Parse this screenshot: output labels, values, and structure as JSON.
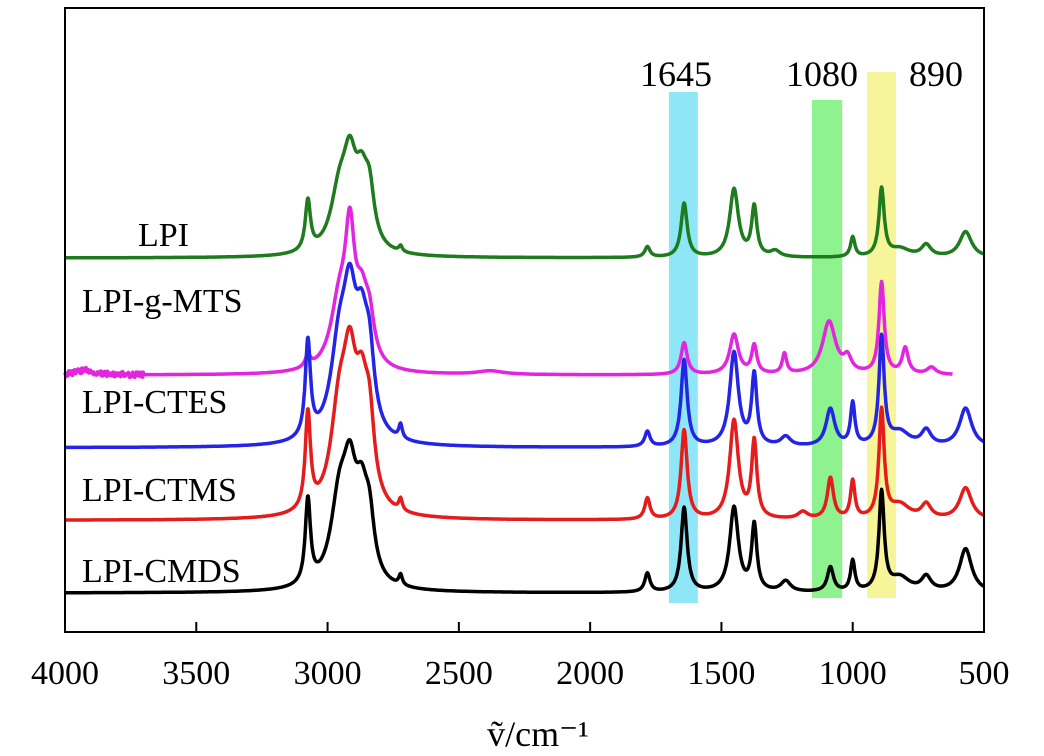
{
  "chart_data": {
    "type": "line",
    "title": "",
    "xlabel": "ṽ/cm⁻¹",
    "ylabel": "",
    "xlim": [
      4000,
      500
    ],
    "xticks": [
      4000,
      3500,
      3000,
      2500,
      2000,
      1500,
      1000,
      500
    ],
    "xtick_labels": [
      "4000",
      "3500",
      "3000",
      "2500",
      "2000",
      "1500",
      "1000",
      "500"
    ],
    "grid": false,
    "legend": "inline labels left of each trace",
    "highlight_bands": [
      {
        "label": "1645",
        "from": 1700,
        "to": 1590,
        "color": "#8ee6f7"
      },
      {
        "label": "1080",
        "from": 1155,
        "to": 1040,
        "color": "#8ef28e"
      },
      {
        "label": "890",
        "from": 945,
        "to": 835,
        "color": "#f7f59a"
      }
    ],
    "series": [
      {
        "name": "LPI",
        "color": "#1e7b1e",
        "baseline": 1.0,
        "xmin": 500,
        "xmax": 4000,
        "peaks": [
          {
            "x": 3075,
            "h": 0.43,
            "w": 12
          },
          {
            "x": 2955,
            "h": 0.48,
            "w": 40
          },
          {
            "x": 2915,
            "h": 0.62,
            "w": 30
          },
          {
            "x": 2870,
            "h": 0.5,
            "w": 30
          },
          {
            "x": 2840,
            "h": 0.38,
            "w": 22
          },
          {
            "x": 2722,
            "h": 0.05,
            "w": 8
          },
          {
            "x": 1782,
            "h": 0.09,
            "w": 12
          },
          {
            "x": 1642,
            "h": 0.46,
            "w": 14
          },
          {
            "x": 1452,
            "h": 0.58,
            "w": 20
          },
          {
            "x": 1375,
            "h": 0.42,
            "w": 12
          },
          {
            "x": 1295,
            "h": 0.05,
            "w": 22
          },
          {
            "x": 1000,
            "h": 0.17,
            "w": 10
          },
          {
            "x": 890,
            "h": 0.58,
            "w": 12
          },
          {
            "x": 820,
            "h": 0.07,
            "w": 45
          },
          {
            "x": 720,
            "h": 0.1,
            "w": 22
          },
          {
            "x": 570,
            "h": 0.22,
            "w": 28
          }
        ]
      },
      {
        "name": "LPI-g-MTS",
        "color": "#e325e0",
        "baseline": 0.0,
        "xmin": 620,
        "xmax": 4000,
        "peaks": [
          {
            "x": 3920,
            "h": 0.04,
            "w": 40
          },
          {
            "x": 3075,
            "h": 0.1,
            "w": 12
          },
          {
            "x": 2955,
            "h": 0.55,
            "w": 40
          },
          {
            "x": 2915,
            "h": 0.98,
            "w": 22
          },
          {
            "x": 2870,
            "h": 0.5,
            "w": 30
          },
          {
            "x": 2840,
            "h": 0.3,
            "w": 22
          },
          {
            "x": 2380,
            "h": 0.03,
            "w": 60
          },
          {
            "x": 1642,
            "h": 0.27,
            "w": 14
          },
          {
            "x": 1452,
            "h": 0.34,
            "w": 20
          },
          {
            "x": 1375,
            "h": 0.24,
            "w": 12
          },
          {
            "x": 1260,
            "h": 0.17,
            "w": 10
          },
          {
            "x": 1090,
            "h": 0.45,
            "w": 30
          },
          {
            "x": 1020,
            "h": 0.12,
            "w": 18
          },
          {
            "x": 890,
            "h": 0.78,
            "w": 12
          },
          {
            "x": 800,
            "h": 0.22,
            "w": 14
          },
          {
            "x": 700,
            "h": 0.06,
            "w": 20
          }
        ]
      },
      {
        "name": "LPI-CTES",
        "color": "#2424e6",
        "baseline": -0.62,
        "xmin": 500,
        "xmax": 4000,
        "peaks": [
          {
            "x": 3075,
            "h": 0.82,
            "w": 12
          },
          {
            "x": 2955,
            "h": 0.75,
            "w": 40
          },
          {
            "x": 2915,
            "h": 0.92,
            "w": 30
          },
          {
            "x": 2870,
            "h": 0.76,
            "w": 30
          },
          {
            "x": 2840,
            "h": 0.5,
            "w": 22
          },
          {
            "x": 2722,
            "h": 0.12,
            "w": 8
          },
          {
            "x": 1782,
            "h": 0.13,
            "w": 12
          },
          {
            "x": 1642,
            "h": 0.74,
            "w": 14
          },
          {
            "x": 1452,
            "h": 0.8,
            "w": 20
          },
          {
            "x": 1375,
            "h": 0.6,
            "w": 12
          },
          {
            "x": 1255,
            "h": 0.08,
            "w": 22
          },
          {
            "x": 1085,
            "h": 0.32,
            "w": 20
          },
          {
            "x": 1000,
            "h": 0.36,
            "w": 10
          },
          {
            "x": 890,
            "h": 0.92,
            "w": 12
          },
          {
            "x": 820,
            "h": 0.12,
            "w": 45
          },
          {
            "x": 720,
            "h": 0.13,
            "w": 22
          },
          {
            "x": 570,
            "h": 0.33,
            "w": 28
          }
        ]
      },
      {
        "name": "LPI-CTMS",
        "color": "#e51c1c",
        "baseline": -1.24,
        "xmin": 500,
        "xmax": 4000,
        "peaks": [
          {
            "x": 3075,
            "h": 0.82,
            "w": 12
          },
          {
            "x": 2955,
            "h": 0.82,
            "w": 40
          },
          {
            "x": 2915,
            "h": 0.95,
            "w": 30
          },
          {
            "x": 2870,
            "h": 0.8,
            "w": 30
          },
          {
            "x": 2840,
            "h": 0.55,
            "w": 22
          },
          {
            "x": 2722,
            "h": 0.1,
            "w": 8
          },
          {
            "x": 1782,
            "h": 0.18,
            "w": 12
          },
          {
            "x": 1642,
            "h": 0.76,
            "w": 14
          },
          {
            "x": 1452,
            "h": 0.84,
            "w": 20
          },
          {
            "x": 1375,
            "h": 0.65,
            "w": 12
          },
          {
            "x": 1190,
            "h": 0.06,
            "w": 22
          },
          {
            "x": 1085,
            "h": 0.35,
            "w": 14
          },
          {
            "x": 1000,
            "h": 0.32,
            "w": 10
          },
          {
            "x": 890,
            "h": 0.92,
            "w": 12
          },
          {
            "x": 820,
            "h": 0.12,
            "w": 45
          },
          {
            "x": 720,
            "h": 0.12,
            "w": 22
          },
          {
            "x": 570,
            "h": 0.27,
            "w": 28
          }
        ]
      },
      {
        "name": "LPI-CMDS",
        "color": "#000000",
        "baseline": -1.86,
        "xmin": 500,
        "xmax": 4000,
        "peaks": [
          {
            "x": 3075,
            "h": 0.72,
            "w": 12
          },
          {
            "x": 2955,
            "h": 0.7,
            "w": 40
          },
          {
            "x": 2915,
            "h": 0.73,
            "w": 30
          },
          {
            "x": 2870,
            "h": 0.62,
            "w": 30
          },
          {
            "x": 2840,
            "h": 0.4,
            "w": 22
          },
          {
            "x": 2722,
            "h": 0.09,
            "w": 8
          },
          {
            "x": 1782,
            "h": 0.16,
            "w": 12
          },
          {
            "x": 1642,
            "h": 0.72,
            "w": 14
          },
          {
            "x": 1452,
            "h": 0.72,
            "w": 20
          },
          {
            "x": 1375,
            "h": 0.56,
            "w": 12
          },
          {
            "x": 1255,
            "h": 0.09,
            "w": 22
          },
          {
            "x": 1085,
            "h": 0.21,
            "w": 14
          },
          {
            "x": 1000,
            "h": 0.26,
            "w": 10
          },
          {
            "x": 890,
            "h": 0.84,
            "w": 12
          },
          {
            "x": 820,
            "h": 0.12,
            "w": 45
          },
          {
            "x": 720,
            "h": 0.12,
            "w": 22
          },
          {
            "x": 570,
            "h": 0.37,
            "w": 28
          }
        ]
      }
    ]
  }
}
